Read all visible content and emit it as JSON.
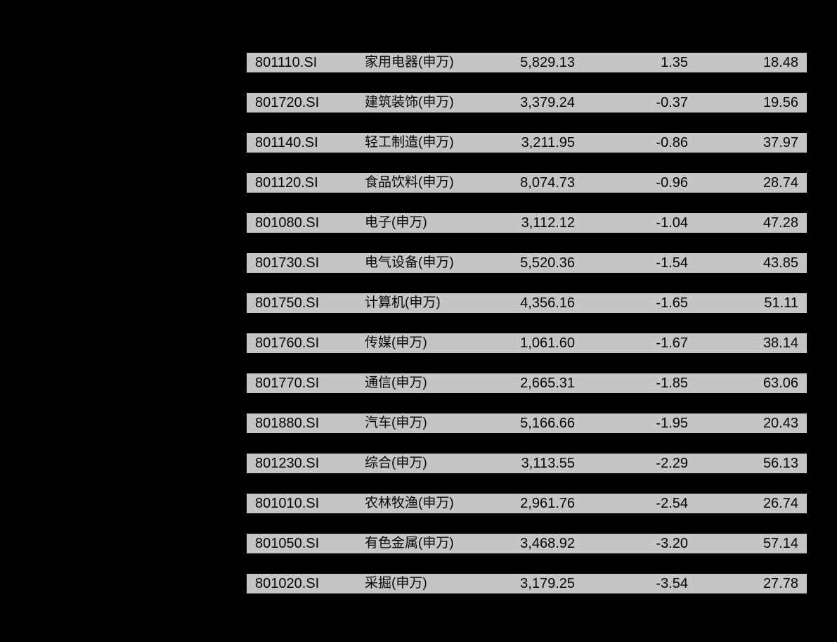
{
  "page": {
    "background_color": "#000000",
    "row_background_color": "#c5c5c5",
    "text_color": "#050505"
  },
  "table": {
    "columns": [
      "index-code",
      "industry-name",
      "index-value",
      "change-percent",
      "ratio-value"
    ],
    "rows": [
      {
        "code": "801110.SI",
        "name": "家用电器(申万)",
        "value": "5,829.13",
        "change": "1.35",
        "ratio": "18.48"
      },
      {
        "code": "801720.SI",
        "name": "建筑装饰(申万)",
        "value": "3,379.24",
        "change": "-0.37",
        "ratio": "19.56"
      },
      {
        "code": "801140.SI",
        "name": "轻工制造(申万)",
        "value": "3,211.95",
        "change": "-0.86",
        "ratio": "37.97"
      },
      {
        "code": "801120.SI",
        "name": "食品饮料(申万)",
        "value": "8,074.73",
        "change": "-0.96",
        "ratio": "28.74"
      },
      {
        "code": "801080.SI",
        "name": "电子(申万)",
        "value": "3,112.12",
        "change": "-1.04",
        "ratio": "47.28"
      },
      {
        "code": "801730.SI",
        "name": "电气设备(申万)",
        "value": "5,520.36",
        "change": "-1.54",
        "ratio": "43.85"
      },
      {
        "code": "801750.SI",
        "name": "计算机(申万)",
        "value": "4,356.16",
        "change": "-1.65",
        "ratio": "51.11"
      },
      {
        "code": "801760.SI",
        "name": "传媒(申万)",
        "value": "1,061.60",
        "change": "-1.67",
        "ratio": "38.14"
      },
      {
        "code": "801770.SI",
        "name": "通信(申万)",
        "value": "2,665.31",
        "change": "-1.85",
        "ratio": "63.06"
      },
      {
        "code": "801880.SI",
        "name": "汽车(申万)",
        "value": "5,166.66",
        "change": "-1.95",
        "ratio": "20.43"
      },
      {
        "code": "801230.SI",
        "name": "综合(申万)",
        "value": "3,113.55",
        "change": "-2.29",
        "ratio": "56.13"
      },
      {
        "code": "801010.SI",
        "name": "农林牧渔(申万)",
        "value": "2,961.76",
        "change": "-2.54",
        "ratio": "26.74"
      },
      {
        "code": "801050.SI",
        "name": "有色金属(申万)",
        "value": "3,468.92",
        "change": "-3.20",
        "ratio": "57.14"
      },
      {
        "code": "801020.SI",
        "name": "采掘(申万)",
        "value": "3,179.25",
        "change": "-3.54",
        "ratio": "27.78"
      }
    ]
  }
}
